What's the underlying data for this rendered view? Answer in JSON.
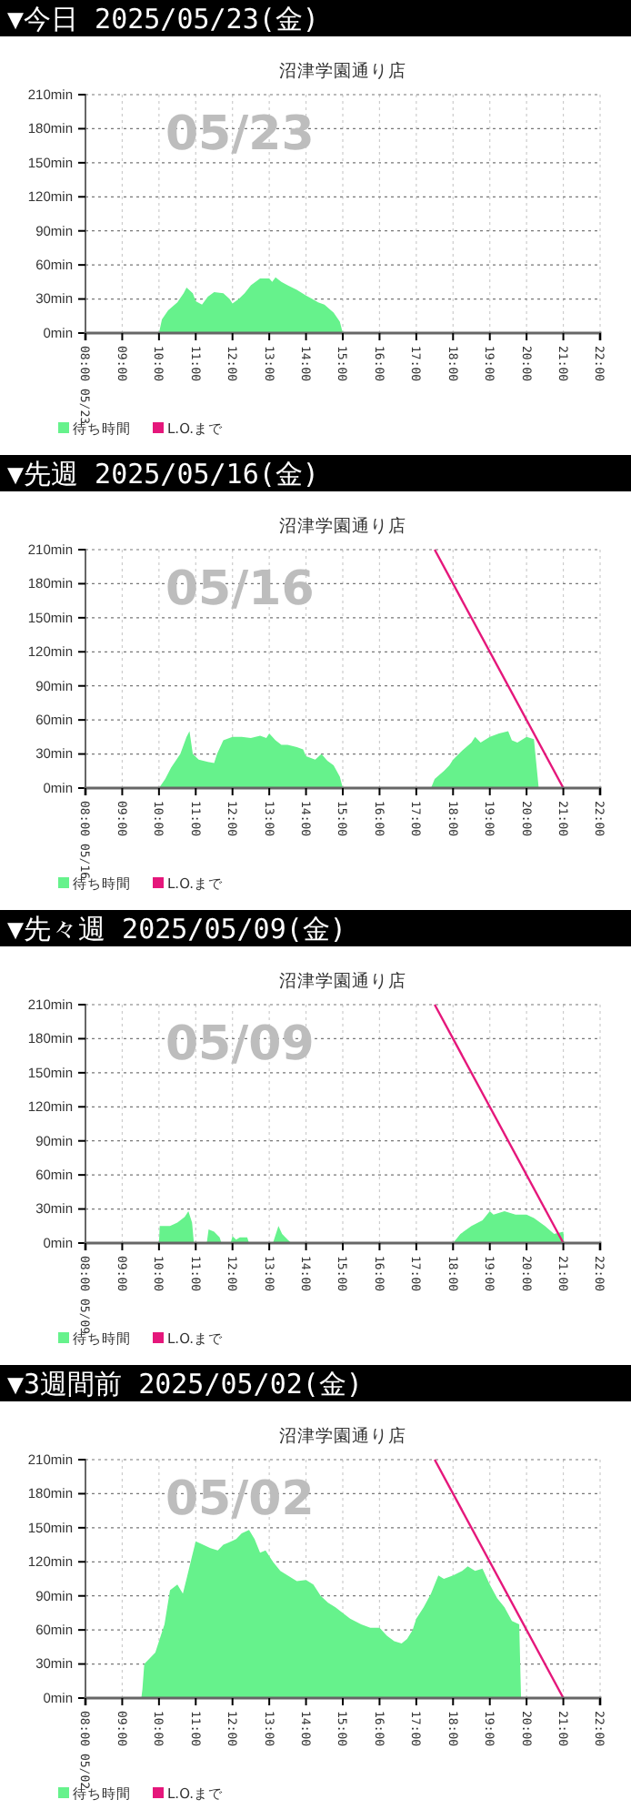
{
  "chart_data": [
    {
      "type": "area",
      "title": "▼今日 2025/05/23(金)",
      "subtitle": "沼津学園通り店",
      "annotations": [
        "05/23"
      ],
      "xlim": [
        8,
        22
      ],
      "ylim": [
        0,
        210
      ],
      "xticks": [
        {
          "value": 8,
          "label": "08:00 05/23"
        },
        {
          "value": 9,
          "label": "09:00"
        },
        {
          "value": 10,
          "label": "10:00"
        },
        {
          "value": 11,
          "label": "11:00"
        },
        {
          "value": 12,
          "label": "12:00"
        },
        {
          "value": 13,
          "label": "13:00"
        },
        {
          "value": 14,
          "label": "14:00"
        },
        {
          "value": 15,
          "label": "15:00"
        },
        {
          "value": 16,
          "label": "16:00"
        },
        {
          "value": 17,
          "label": "17:00"
        },
        {
          "value": 18,
          "label": "18:00"
        },
        {
          "value": 19,
          "label": "19:00"
        },
        {
          "value": 20,
          "label": "20:00"
        },
        {
          "value": 21,
          "label": "21:00"
        },
        {
          "value": 22,
          "label": "22:00"
        }
      ],
      "yticks": [
        {
          "value": 0,
          "label": "0min"
        },
        {
          "value": 30,
          "label": "30min"
        },
        {
          "value": 60,
          "label": "60min"
        },
        {
          "value": 90,
          "label": "90min"
        },
        {
          "value": 120,
          "label": "120min"
        },
        {
          "value": 150,
          "label": "150min"
        },
        {
          "value": 180,
          "label": "180min"
        },
        {
          "value": 210,
          "label": "210min"
        }
      ],
      "grid": true,
      "legend": "bottom",
      "series": [
        {
          "name": "待ち時間",
          "color": "#66f28c",
          "x": [
            10,
            10.08,
            10.25,
            10.5,
            10.67,
            10.75,
            10.92,
            11,
            11.17,
            11.33,
            11.5,
            11.75,
            11.92,
            12,
            12.17,
            12.33,
            12.5,
            12.75,
            13,
            13.08,
            13.17,
            13.33,
            13.5,
            13.75,
            14,
            14.17,
            14.33,
            14.5,
            14.75,
            14.92,
            15
          ],
          "values": [
            0,
            12,
            20,
            27,
            35,
            40,
            35,
            28,
            25,
            32,
            36,
            35,
            30,
            26,
            30,
            35,
            42,
            48,
            48,
            45,
            49,
            45,
            42,
            38,
            33,
            30,
            27,
            25,
            18,
            10,
            0
          ]
        },
        {
          "name": "L.O.まで",
          "type": "line",
          "color": "#e5177b"
        }
      ]
    },
    {
      "type": "area",
      "title": "▼先週 2025/05/16(金)",
      "subtitle": "沼津学園通り店",
      "annotations": [
        "05/16"
      ],
      "xlim": [
        8,
        22
      ],
      "ylim": [
        0,
        210
      ],
      "xticks": [
        {
          "value": 8,
          "label": "08:00 05/16"
        },
        {
          "value": 9,
          "label": "09:00"
        },
        {
          "value": 10,
          "label": "10:00"
        },
        {
          "value": 11,
          "label": "11:00"
        },
        {
          "value": 12,
          "label": "12:00"
        },
        {
          "value": 13,
          "label": "13:00"
        },
        {
          "value": 14,
          "label": "14:00"
        },
        {
          "value": 15,
          "label": "15:00"
        },
        {
          "value": 16,
          "label": "16:00"
        },
        {
          "value": 17,
          "label": "17:00"
        },
        {
          "value": 18,
          "label": "18:00"
        },
        {
          "value": 19,
          "label": "19:00"
        },
        {
          "value": 20,
          "label": "20:00"
        },
        {
          "value": 21,
          "label": "21:00"
        },
        {
          "value": 22,
          "label": "22:00"
        }
      ],
      "yticks": [
        {
          "value": 0,
          "label": "0min"
        },
        {
          "value": 30,
          "label": "30min"
        },
        {
          "value": 60,
          "label": "60min"
        },
        {
          "value": 90,
          "label": "90min"
        },
        {
          "value": 120,
          "label": "120min"
        },
        {
          "value": 150,
          "label": "150min"
        },
        {
          "value": 180,
          "label": "180min"
        },
        {
          "value": 210,
          "label": "210min"
        }
      ],
      "grid": true,
      "legend": "bottom",
      "series": [
        {
          "name": "待ち時間",
          "color": "#66f28c",
          "x": [
            10,
            10.17,
            10.33,
            10.58,
            10.75,
            10.83,
            10.92,
            11.08,
            11.33,
            11.5,
            11.58,
            11.75,
            12,
            12.25,
            12.5,
            12.75,
            12.92,
            13,
            13.17,
            13.33,
            13.5,
            13.75,
            13.92,
            14,
            14.25,
            14.42,
            14.58,
            14.75,
            14.92,
            15,
            15.1,
            17.4,
            17.5,
            17.75,
            17.9,
            18,
            18.25,
            18.5,
            18.6,
            18.75,
            19,
            19.25,
            19.5,
            19.6,
            19.75,
            20,
            20.2,
            20.33
          ],
          "values": [
            0,
            8,
            18,
            30,
            45,
            50,
            30,
            25,
            23,
            22,
            30,
            42,
            45,
            45,
            44,
            46,
            44,
            48,
            42,
            38,
            38,
            36,
            34,
            28,
            25,
            30,
            24,
            20,
            10,
            0,
            null,
            0,
            8,
            15,
            20,
            25,
            33,
            40,
            45,
            40,
            45,
            48,
            50,
            42,
            40,
            45,
            43,
            0
          ]
        },
        {
          "name": "L.O.まで",
          "type": "line",
          "color": "#e5177b",
          "x": [
            17.5,
            21
          ],
          "values": [
            210,
            0
          ]
        }
      ]
    },
    {
      "type": "area",
      "title": "▼先々週 2025/05/09(金)",
      "subtitle": "沼津学園通り店",
      "annotations": [
        "05/09"
      ],
      "xlim": [
        8,
        22
      ],
      "ylim": [
        0,
        210
      ],
      "xticks": [
        {
          "value": 8,
          "label": "08:00 05/09"
        },
        {
          "value": 9,
          "label": "09:00"
        },
        {
          "value": 10,
          "label": "10:00"
        },
        {
          "value": 11,
          "label": "11:00"
        },
        {
          "value": 12,
          "label": "12:00"
        },
        {
          "value": 13,
          "label": "13:00"
        },
        {
          "value": 14,
          "label": "14:00"
        },
        {
          "value": 15,
          "label": "15:00"
        },
        {
          "value": 16,
          "label": "16:00"
        },
        {
          "value": 17,
          "label": "17:00"
        },
        {
          "value": 18,
          "label": "18:00"
        },
        {
          "value": 19,
          "label": "19:00"
        },
        {
          "value": 20,
          "label": "20:00"
        },
        {
          "value": 21,
          "label": "21:00"
        },
        {
          "value": 22,
          "label": "22:00"
        }
      ],
      "yticks": [
        {
          "value": 0,
          "label": "0min"
        },
        {
          "value": 30,
          "label": "30min"
        },
        {
          "value": 60,
          "label": "60min"
        },
        {
          "value": 90,
          "label": "90min"
        },
        {
          "value": 120,
          "label": "120min"
        },
        {
          "value": 150,
          "label": "150min"
        },
        {
          "value": 180,
          "label": "180min"
        },
        {
          "value": 210,
          "label": "210min"
        }
      ],
      "grid": true,
      "legend": "bottom",
      "series": [
        {
          "name": "待ち時間",
          "color": "#66f28c",
          "x": [
            10,
            10.02,
            10.3,
            10.5,
            10.7,
            10.8,
            10.9,
            10.95,
            11.1,
            11.3,
            11.35,
            11.5,
            11.65,
            11.7,
            11.8,
            11.95,
            12,
            12.1,
            12.2,
            12.4,
            12.45,
            12.8,
            13.1,
            13.25,
            13.35,
            13.5,
            13.6,
            13.65,
            18,
            18.2,
            18.5,
            18.8,
            19,
            19.1,
            19.4,
            19.7,
            20,
            20.2,
            20.5,
            20.75,
            21,
            21.02
          ],
          "values": [
            0,
            15,
            15,
            18,
            23,
            28,
            18,
            0,
            null,
            0,
            12,
            10,
            5,
            0,
            null,
            0,
            6,
            3,
            5,
            5,
            0,
            null,
            0,
            15,
            8,
            3,
            0,
            null,
            0,
            8,
            15,
            20,
            28,
            25,
            28,
            25,
            25,
            22,
            15,
            8,
            10,
            0
          ]
        },
        {
          "name": "L.O.まで",
          "type": "line",
          "color": "#e5177b",
          "x": [
            17.5,
            21
          ],
          "values": [
            210,
            0
          ]
        }
      ]
    },
    {
      "type": "area",
      "title": "▼3週間前 2025/05/02(金)",
      "subtitle": "沼津学園通り店",
      "annotations": [
        "05/02"
      ],
      "xlim": [
        8,
        22
      ],
      "ylim": [
        0,
        210
      ],
      "xticks": [
        {
          "value": 8,
          "label": "08:00 05/02"
        },
        {
          "value": 9,
          "label": "09:00"
        },
        {
          "value": 10,
          "label": "10:00"
        },
        {
          "value": 11,
          "label": "11:00"
        },
        {
          "value": 12,
          "label": "12:00"
        },
        {
          "value": 13,
          "label": "13:00"
        },
        {
          "value": 14,
          "label": "14:00"
        },
        {
          "value": 15,
          "label": "15:00"
        },
        {
          "value": 16,
          "label": "16:00"
        },
        {
          "value": 17,
          "label": "17:00"
        },
        {
          "value": 18,
          "label": "18:00"
        },
        {
          "value": 19,
          "label": "19:00"
        },
        {
          "value": 20,
          "label": "20:00"
        },
        {
          "value": 21,
          "label": "21:00"
        },
        {
          "value": 22,
          "label": "22:00"
        }
      ],
      "yticks": [
        {
          "value": 0,
          "label": "0min"
        },
        {
          "value": 30,
          "label": "30min"
        },
        {
          "value": 60,
          "label": "60min"
        },
        {
          "value": 90,
          "label": "90min"
        },
        {
          "value": 120,
          "label": "120min"
        },
        {
          "value": 150,
          "label": "150min"
        },
        {
          "value": 180,
          "label": "180min"
        },
        {
          "value": 210,
          "label": "210min"
        }
      ],
      "grid": true,
      "legend": "bottom",
      "series": [
        {
          "name": "待ち時間",
          "color": "#66f28c",
          "x": [
            9.52,
            9.55,
            9.6,
            9.75,
            9.9,
            10,
            10.15,
            10.3,
            10.5,
            10.65,
            10.75,
            10.9,
            11,
            11.2,
            11.4,
            11.6,
            11.75,
            11.9,
            12.1,
            12.25,
            12.45,
            12.6,
            12.75,
            12.9,
            13.1,
            13.3,
            13.5,
            13.75,
            14,
            14.2,
            14.4,
            14.6,
            14.8,
            15,
            15.2,
            15.5,
            15.75,
            16,
            16.2,
            16.4,
            16.6,
            16.75,
            16.9,
            17,
            17.2,
            17.4,
            17.5,
            17.6,
            17.75,
            18,
            18.25,
            18.4,
            18.6,
            18.8,
            19,
            19.2,
            19.4,
            19.6,
            19.8,
            19.85
          ],
          "values": [
            0,
            8,
            30,
            35,
            40,
            50,
            65,
            95,
            100,
            92,
            105,
            125,
            138,
            135,
            132,
            130,
            135,
            137,
            140,
            145,
            148,
            140,
            128,
            130,
            120,
            112,
            108,
            103,
            104,
            100,
            90,
            84,
            80,
            75,
            70,
            65,
            62,
            62,
            55,
            50,
            48,
            52,
            60,
            70,
            80,
            92,
            100,
            108,
            105,
            108,
            112,
            116,
            112,
            114,
            100,
            88,
            80,
            68,
            65,
            0
          ]
        },
        {
          "name": "L.O.まで",
          "type": "line",
          "color": "#e5177b",
          "x": [
            17.5,
            21
          ],
          "values": [
            210,
            0
          ]
        }
      ]
    }
  ]
}
